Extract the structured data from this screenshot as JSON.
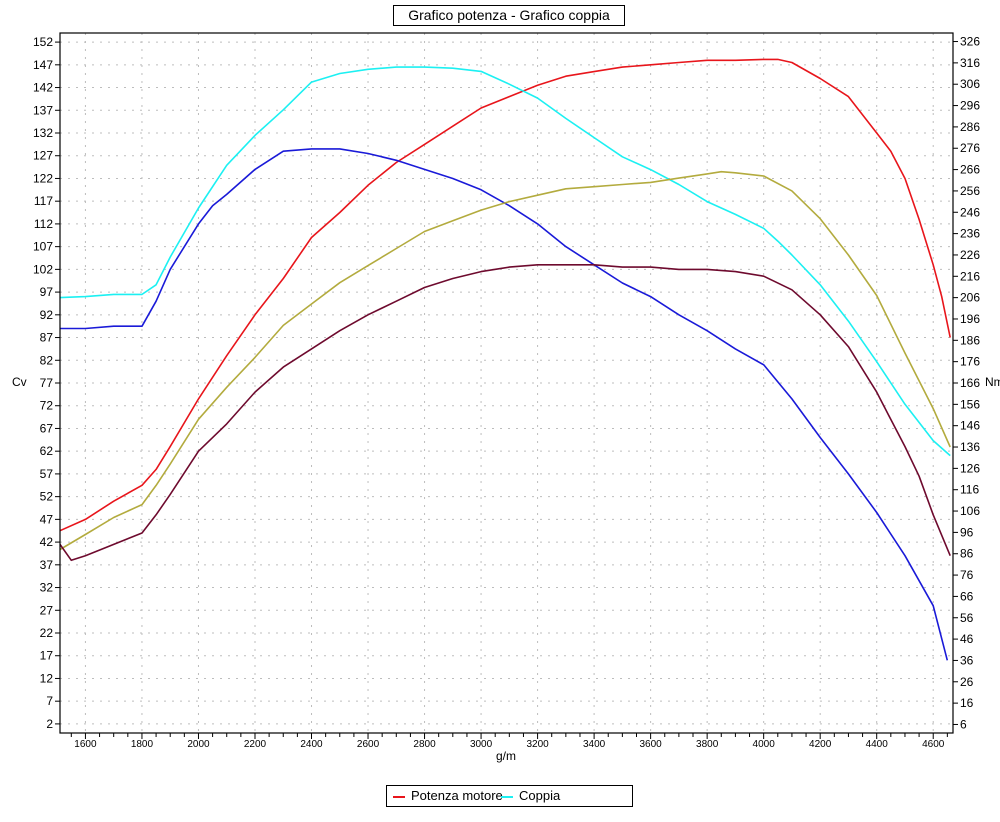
{
  "chart_data": {
    "type": "line",
    "title": "Grafico potenza - Grafico coppia",
    "xlabel": "g/m",
    "ylabel_left": "Cv",
    "ylabel_right": "Nm",
    "xlim": [
      1510,
      4670
    ],
    "ylim_left": [
      0,
      154
    ],
    "ylim_right": [
      2,
      330
    ],
    "x_ticks": [
      1600,
      1800,
      2000,
      2200,
      2400,
      2600,
      2800,
      3000,
      3200,
      3400,
      3600,
      3800,
      4000,
      4200,
      4400,
      4600
    ],
    "y_ticks_left": [
      2,
      7,
      12,
      17,
      22,
      27,
      32,
      37,
      42,
      47,
      52,
      57,
      62,
      67,
      72,
      77,
      82,
      87,
      92,
      97,
      102,
      107,
      112,
      117,
      122,
      127,
      132,
      137,
      142,
      147,
      152
    ],
    "y_ticks_right": [
      6,
      16,
      26,
      36,
      46,
      56,
      66,
      76,
      86,
      96,
      106,
      116,
      126,
      136,
      146,
      156,
      166,
      176,
      186,
      196,
      206,
      216,
      226,
      236,
      246,
      256,
      266,
      276,
      286,
      296,
      306,
      316,
      326
    ],
    "grid": true,
    "legend_position": "bottom",
    "series": [
      {
        "name": "Potenza motore",
        "color": "#e8151b",
        "axis": "left",
        "x": [
          1510,
          1600,
          1700,
          1800,
          1850,
          1900,
          2000,
          2100,
          2200,
          2300,
          2400,
          2500,
          2600,
          2700,
          2800,
          2900,
          3000,
          3100,
          3200,
          3300,
          3400,
          3500,
          3600,
          3700,
          3800,
          3900,
          4000,
          4050,
          4100,
          4200,
          4300,
          4400,
          4450,
          4500,
          4550,
          4600,
          4630,
          4660
        ],
        "values": [
          44.5,
          47,
          51,
          54.5,
          58,
          63,
          73.5,
          83,
          92,
          100,
          109,
          114.5,
          120.5,
          125.5,
          129.5,
          133.5,
          137.5,
          140,
          142.5,
          144.5,
          145.5,
          146.5,
          147,
          147.5,
          148,
          148,
          148.2,
          148.2,
          147.5,
          144,
          140,
          132,
          128,
          122,
          113,
          103,
          96,
          87
        ]
      },
      {
        "name": "Coppia",
        "color": "#1cf0f2",
        "axis": "right",
        "x": [
          1510,
          1600,
          1700,
          1800,
          1850,
          1900,
          2000,
          2100,
          2200,
          2300,
          2400,
          2500,
          2600,
          2700,
          2800,
          2900,
          3000,
          3100,
          3200,
          3300,
          3400,
          3500,
          3600,
          3700,
          3800,
          3900,
          4000,
          4050,
          4100,
          4200,
          4300,
          4400,
          4500,
          4600,
          4660
        ],
        "values": [
          206,
          206.5,
          207.5,
          207.5,
          212,
          225,
          248,
          268,
          282,
          294,
          307,
          311,
          313,
          314,
          314,
          313.5,
          312,
          306,
          299.5,
          290,
          281,
          272,
          266,
          259,
          251,
          245,
          238.5,
          232.5,
          226,
          212,
          195,
          176,
          156,
          139,
          132
        ]
      },
      {
        "name": "",
        "color": "#1a1ad8",
        "axis": "left",
        "x": [
          1510,
          1600,
          1700,
          1800,
          1850,
          1900,
          2000,
          2050,
          2100,
          2200,
          2300,
          2400,
          2500,
          2600,
          2700,
          2800,
          2900,
          3000,
          3100,
          3200,
          3300,
          3400,
          3500,
          3600,
          3700,
          3800,
          3900,
          4000,
          4100,
          4200,
          4300,
          4400,
          4500,
          4600,
          4650
        ],
        "values": [
          89,
          89,
          89.5,
          89.5,
          95,
          102,
          112,
          116,
          118.5,
          124,
          128,
          128.5,
          128.5,
          127.5,
          126,
          124,
          122,
          119.5,
          116,
          112,
          107,
          103,
          99,
          96,
          92,
          88.5,
          84.5,
          81,
          73.5,
          65,
          57,
          48.5,
          39,
          28,
          16
        ]
      },
      {
        "name": "",
        "color": "#b3ab3e",
        "axis": "right",
        "x": [
          1510,
          1600,
          1700,
          1800,
          1850,
          1900,
          2000,
          2100,
          2200,
          2300,
          2400,
          2500,
          2600,
          2700,
          2800,
          2900,
          3000,
          3100,
          3200,
          3300,
          3400,
          3500,
          3600,
          3700,
          3800,
          3850,
          3900,
          4000,
          4100,
          4200,
          4300,
          4400,
          4500,
          4600,
          4660
        ],
        "values": [
          88,
          95,
          103,
          109,
          118,
          128,
          149,
          164,
          178,
          193,
          203,
          213,
          221,
          229,
          237,
          242,
          247,
          251,
          254,
          257,
          258,
          259,
          260,
          262,
          264,
          265,
          264.5,
          263,
          256,
          243,
          226,
          207,
          180,
          154,
          136
        ]
      },
      {
        "name": "",
        "color": "#6e0a2e",
        "axis": "left",
        "x": [
          1510,
          1550,
          1600,
          1700,
          1800,
          1850,
          1900,
          2000,
          2100,
          2200,
          2300,
          2400,
          2500,
          2600,
          2700,
          2800,
          2900,
          3000,
          3100,
          3200,
          3300,
          3400,
          3500,
          3600,
          3700,
          3800,
          3900,
          4000,
          4100,
          4200,
          4300,
          4400,
          4450,
          4500,
          4550,
          4600,
          4660
        ],
        "values": [
          41.5,
          38,
          39,
          41.5,
          44,
          48,
          52.5,
          62,
          68,
          75,
          80.5,
          84.5,
          88.5,
          92,
          95,
          98,
          100,
          101.5,
          102.5,
          103,
          103,
          103,
          102.5,
          102.5,
          102,
          102,
          101.5,
          100.5,
          97.5,
          92,
          85,
          75,
          69,
          63,
          56.5,
          48,
          39
        ]
      }
    ]
  }
}
